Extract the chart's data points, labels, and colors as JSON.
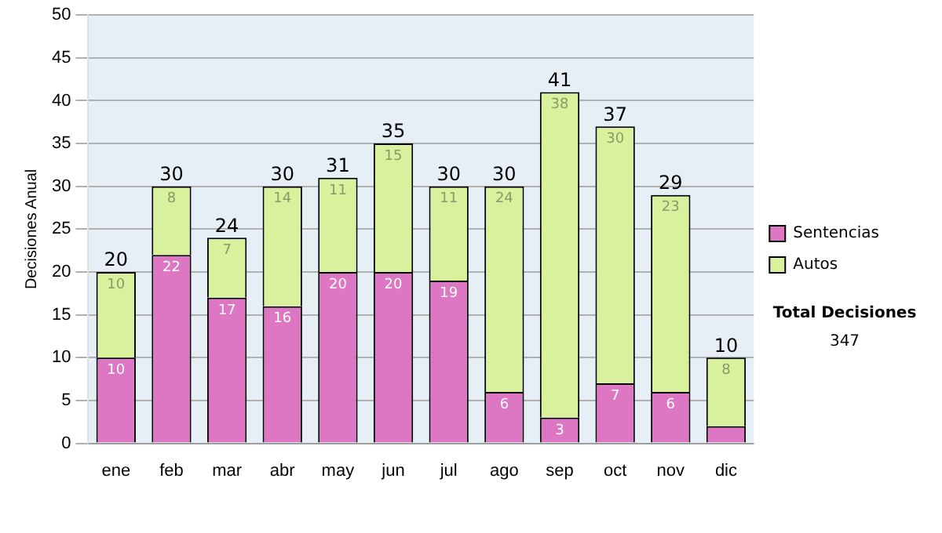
{
  "chart_data": {
    "type": "bar",
    "stacked": true,
    "ylabel": "Decisiones Anual",
    "categories": [
      "ene",
      "feb",
      "mar",
      "abr",
      "may",
      "jun",
      "jul",
      "ago",
      "sep",
      "oct",
      "nov",
      "dic"
    ],
    "series": [
      {
        "name": "Sentencias",
        "color": "#dd77c4",
        "values": [
          10,
          22,
          17,
          16,
          20,
          20,
          19,
          6,
          3,
          7,
          6,
          2
        ],
        "value_labels": [
          "10",
          "22",
          "17",
          "16",
          "20",
          "20",
          "19",
          "6",
          "3",
          "7",
          "6",
          null
        ]
      },
      {
        "name": "Autos",
        "color": "#d9f09c",
        "values": [
          10,
          8,
          7,
          14,
          11,
          15,
          11,
          24,
          38,
          30,
          23,
          8
        ],
        "value_labels": [
          "10",
          "8",
          "7",
          "14",
          "11",
          "15",
          "11",
          "24",
          "38",
          "30",
          "23",
          "8"
        ]
      }
    ],
    "totals": [
      "20",
      "30",
      "24",
      "30",
      "31",
      "35",
      "30",
      "30",
      "41",
      "37",
      "29",
      "10"
    ],
    "ylim": [
      0,
      50
    ],
    "yticks": [
      0,
      5,
      10,
      15,
      20,
      25,
      30,
      35,
      40,
      45,
      50
    ],
    "grid": "y",
    "legend": "right",
    "annotations": [
      "Total Decisiones",
      "347"
    ]
  }
}
